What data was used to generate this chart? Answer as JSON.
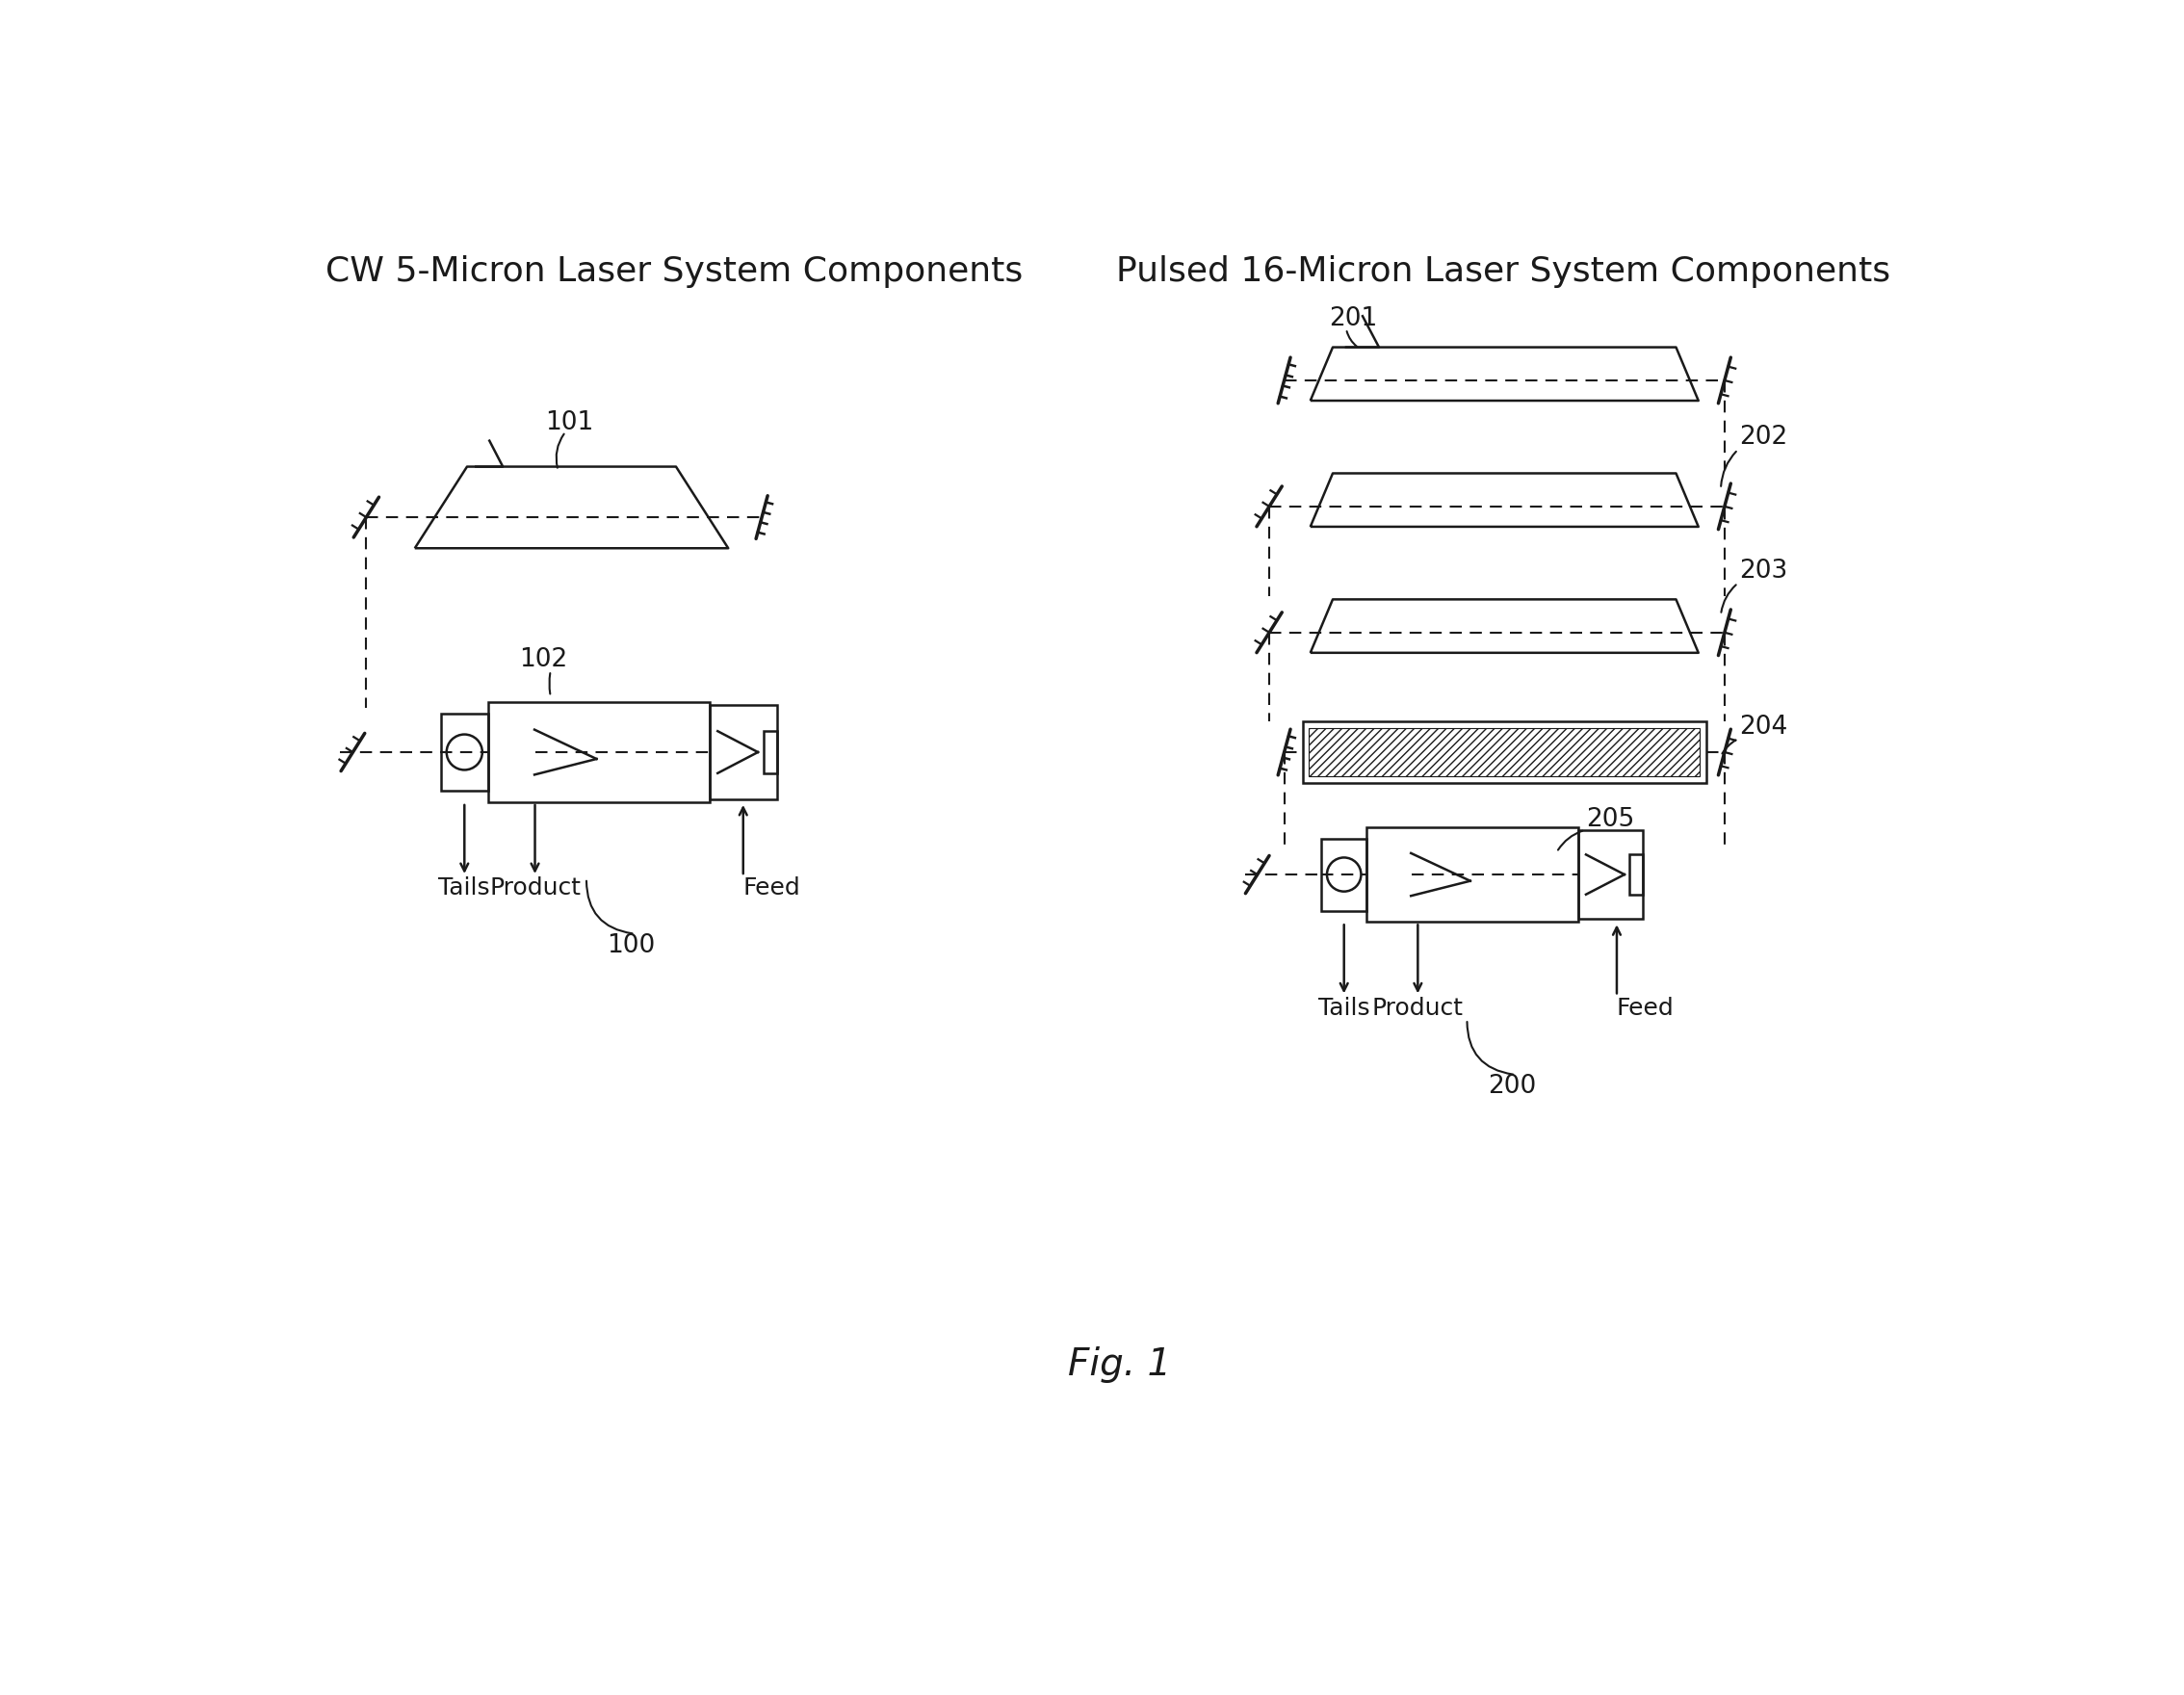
{
  "title_left": "CW 5-Micron Laser System Components",
  "title_right": "Pulsed 16-Micron Laser System Components",
  "fig_label": "Fig. 1",
  "bg_color": "#ffffff",
  "line_color": "#1a1a1a"
}
